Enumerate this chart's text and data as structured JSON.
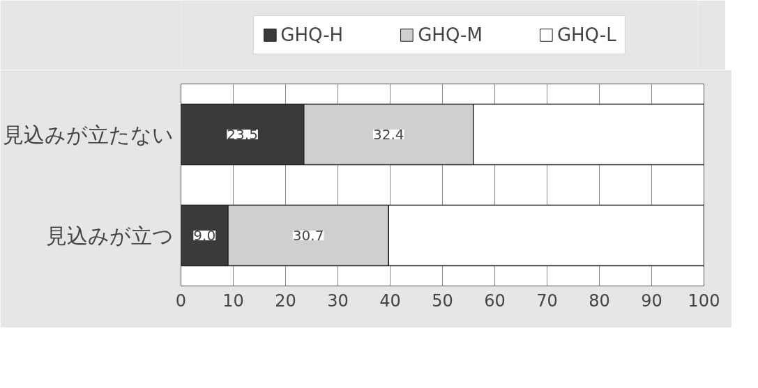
{
  "chart_data": {
    "type": "bar",
    "orientation": "horizontal",
    "stacked": true,
    "categories": [
      "見込みが立たない",
      "見込みが立つ"
    ],
    "series": [
      {
        "name": "GHQ-H",
        "color": "#3a3a3a",
        "values": [
          23.5,
          9.0
        ],
        "value_labels": [
          "23.5",
          "9.0"
        ]
      },
      {
        "name": "GHQ-M",
        "color": "#cfcfcf",
        "values": [
          32.4,
          30.7
        ],
        "value_labels": [
          "32.4",
          "30.7"
        ]
      },
      {
        "name": "GHQ-L",
        "color": "#ffffff",
        "values": [
          44.1,
          60.3
        ],
        "value_labels": [
          null,
          null
        ]
      }
    ],
    "xlim": [
      0,
      100
    ],
    "xticks": [
      0,
      10,
      20,
      30,
      40,
      50,
      60,
      70,
      80,
      90,
      100
    ],
    "grid": "x",
    "legend": "top"
  }
}
